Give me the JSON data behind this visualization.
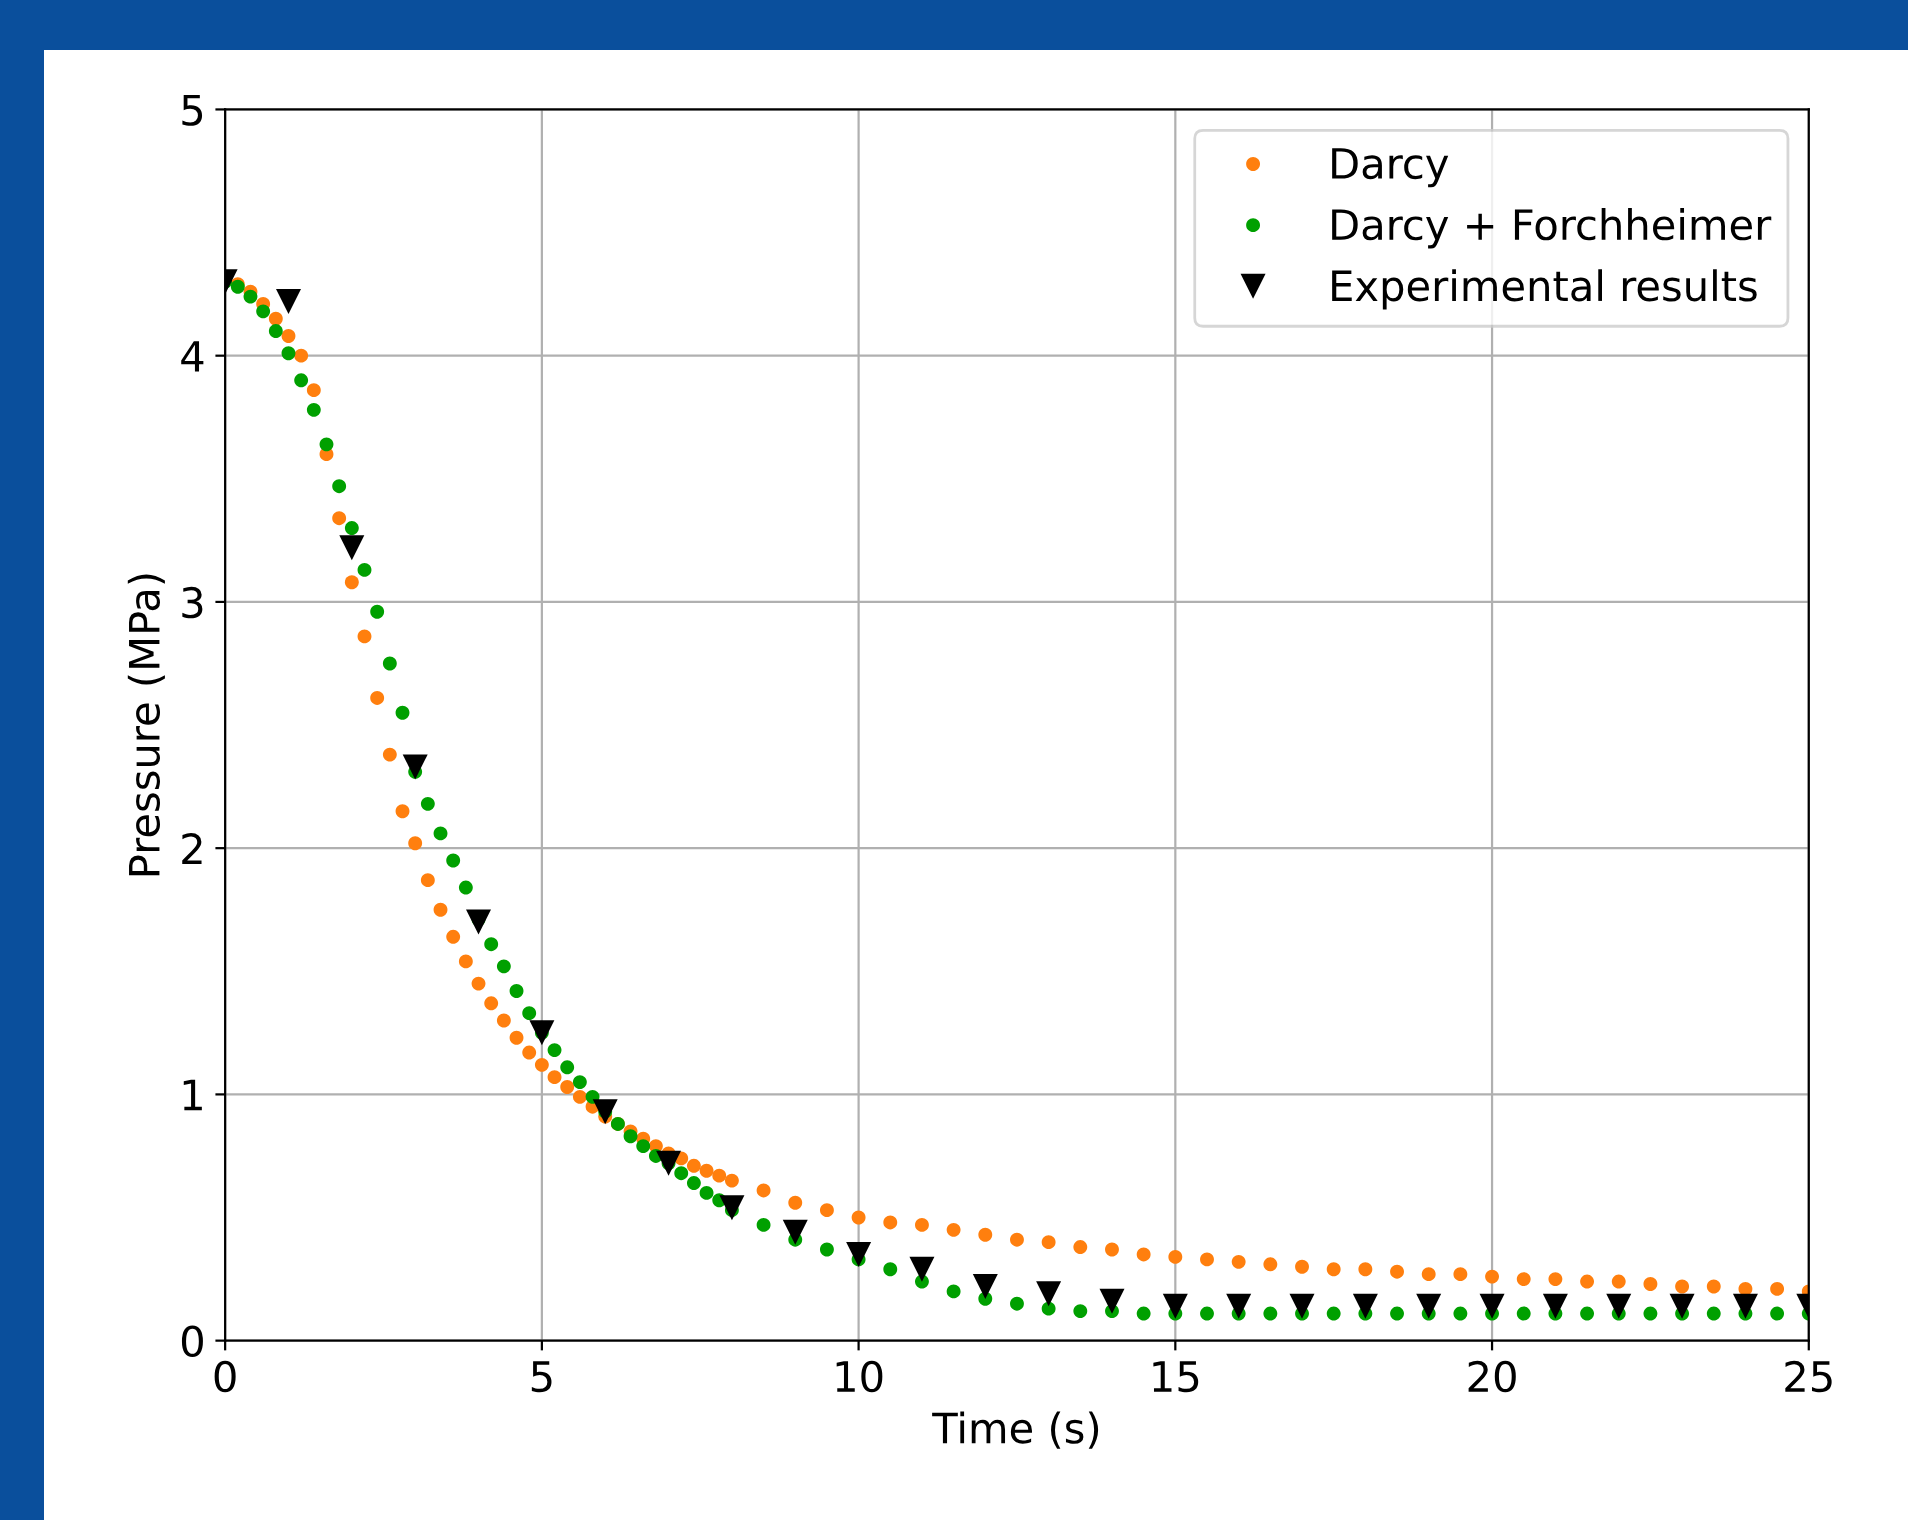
{
  "chart_data": {
    "type": "scatter",
    "xlabel": "Time (s)",
    "ylabel": "Pressure (MPa)",
    "xlim": [
      0,
      25
    ],
    "ylim": [
      0,
      5
    ],
    "xticks": [
      0,
      5,
      10,
      15,
      20,
      25
    ],
    "yticks": [
      0,
      1,
      2,
      3,
      4,
      5
    ],
    "grid": true,
    "legend": "top right",
    "series": [
      {
        "name": "Darcy",
        "color": "#ff7f0e",
        "marker": "circle",
        "x": [
          0.2,
          0.4,
          0.6,
          0.8,
          1.0,
          1.2,
          1.4,
          1.6,
          1.8,
          2.0,
          2.2,
          2.4,
          2.6,
          2.8,
          3.0,
          3.2,
          3.4,
          3.6,
          3.8,
          4.0,
          4.2,
          4.4,
          4.6,
          4.8,
          5.0,
          5.2,
          5.4,
          5.6,
          5.8,
          6.0,
          6.2,
          6.4,
          6.6,
          6.8,
          7.0,
          7.2,
          7.4,
          7.6,
          7.8,
          8.0,
          8.5,
          9,
          9.5,
          10,
          10.5,
          11,
          11.5,
          12,
          12.5,
          13,
          13.5,
          14,
          14.5,
          15,
          15.5,
          16,
          16.5,
          17,
          17.5,
          18,
          18.5,
          19,
          19.5,
          20,
          20.5,
          21,
          21.5,
          22,
          22.5,
          23,
          23.5,
          24,
          24.5,
          25
        ],
        "values": [
          4.29,
          4.26,
          4.21,
          4.15,
          4.08,
          4.0,
          3.86,
          3.6,
          3.34,
          3.08,
          2.86,
          2.61,
          2.38,
          2.15,
          2.02,
          1.87,
          1.75,
          1.64,
          1.54,
          1.45,
          1.37,
          1.3,
          1.23,
          1.17,
          1.12,
          1.07,
          1.03,
          0.99,
          0.95,
          0.91,
          0.88,
          0.85,
          0.82,
          0.79,
          0.76,
          0.74,
          0.71,
          0.69,
          0.67,
          0.65,
          0.61,
          0.56,
          0.53,
          0.5,
          0.48,
          0.47,
          0.45,
          0.43,
          0.41,
          0.4,
          0.38,
          0.37,
          0.35,
          0.34,
          0.33,
          0.32,
          0.31,
          0.3,
          0.29,
          0.29,
          0.28,
          0.27,
          0.27,
          0.26,
          0.25,
          0.25,
          0.24,
          0.24,
          0.23,
          0.22,
          0.22,
          0.21,
          0.21,
          0.2
        ]
      },
      {
        "name": "Darcy + Forchheimer",
        "color": "#00a000",
        "marker": "circle",
        "x": [
          0,
          0.2,
          0.4,
          0.6,
          0.8,
          1.0,
          1.2,
          1.4,
          1.6,
          1.8,
          2.0,
          2.2,
          2.4,
          2.6,
          2.8,
          3.0,
          3.2,
          3.4,
          3.6,
          3.8,
          4.0,
          4.2,
          4.4,
          4.6,
          4.8,
          5.0,
          5.2,
          5.4,
          5.6,
          5.8,
          6.0,
          6.2,
          6.4,
          6.6,
          6.8,
          7.0,
          7.2,
          7.4,
          7.6,
          7.8,
          8.0,
          8.5,
          9,
          9.5,
          10,
          10.5,
          11,
          11.5,
          12,
          12.5,
          13,
          13.5,
          14,
          14.5,
          15,
          15.5,
          16,
          16.5,
          17,
          17.5,
          18,
          18.5,
          19,
          19.5,
          20,
          20.5,
          21,
          21.5,
          22,
          22.5,
          23,
          23.5,
          24,
          24.5,
          25
        ],
        "values": [
          4.3,
          4.28,
          4.24,
          4.18,
          4.1,
          4.01,
          3.9,
          3.78,
          3.64,
          3.47,
          3.3,
          3.13,
          2.96,
          2.75,
          2.55,
          2.31,
          2.18,
          2.06,
          1.95,
          1.84,
          1.71,
          1.61,
          1.52,
          1.42,
          1.33,
          1.25,
          1.18,
          1.11,
          1.05,
          0.99,
          0.93,
          0.88,
          0.83,
          0.79,
          0.75,
          0.72,
          0.68,
          0.64,
          0.6,
          0.57,
          0.53,
          0.47,
          0.41,
          0.37,
          0.33,
          0.29,
          0.24,
          0.2,
          0.17,
          0.15,
          0.13,
          0.12,
          0.12,
          0.11,
          0.11,
          0.11,
          0.11,
          0.11,
          0.11,
          0.11,
          0.11,
          0.11,
          0.11,
          0.11,
          0.11,
          0.11,
          0.11,
          0.11,
          0.11,
          0.11,
          0.11,
          0.11,
          0.11,
          0.11,
          0.11
        ]
      },
      {
        "name": "Experimental results",
        "color": "#000000",
        "marker": "triangle",
        "x": [
          0,
          1,
          2,
          3,
          4,
          5,
          6,
          7,
          8,
          9,
          10,
          11,
          12,
          13,
          14,
          15,
          16,
          17,
          18,
          19,
          20,
          21,
          22,
          23,
          24,
          25
        ],
        "values": [
          4.3,
          4.22,
          3.22,
          2.33,
          1.7,
          1.25,
          0.93,
          0.72,
          0.54,
          0.44,
          0.35,
          0.29,
          0.22,
          0.19,
          0.16,
          0.14,
          0.14,
          0.14,
          0.14,
          0.14,
          0.14,
          0.14,
          0.14,
          0.14,
          0.14,
          0.14
        ]
      }
    ]
  }
}
